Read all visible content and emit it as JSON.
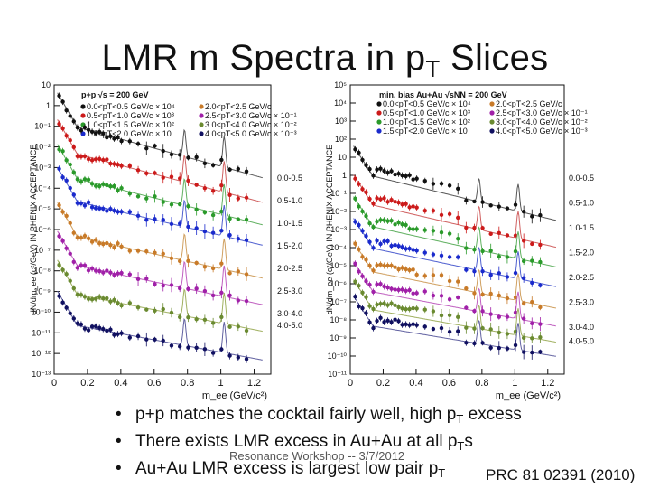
{
  "title": {
    "main": "LMR m Spectra in p",
    "sub": "T",
    "end": " Slices"
  },
  "bullets": [
    {
      "pre": "p+p matches the cocktail fairly well, high p",
      "sub": "T",
      "post": " excess"
    },
    {
      "pre": "There exists LMR excess in Au+Au at all p",
      "sub": "T",
      "post": "s"
    },
    {
      "pre": "Au+Au LMR excess is largest low pair p",
      "sub": "T",
      "post": ""
    }
  ],
  "footer": "Resonance Workshop -- 3/7/2012",
  "citation": "PRC 81 02391 (2010)",
  "colors": {
    "series": [
      "#111111",
      "#cc1a1a",
      "#2a9a2a",
      "#1a2acc",
      "#c87a28",
      "#a020a8",
      "#6a8a30",
      "#101060"
    ],
    "cocktail": [
      "#555555",
      "#d06060",
      "#60b060",
      "#5060d0",
      "#d0a060",
      "#c060c0",
      "#a0b060",
      "#6060a0"
    ]
  },
  "chart_data": [
    {
      "type": "line",
      "panel": "p+p",
      "header": "p+p √s = 200 GeV",
      "xlabel": "m_ee (GeV/c²)",
      "ylabel": "dN/dm_ee (c²/GeV) IN PHENIX ACCEPTANCE",
      "xlim": [
        0,
        1.3
      ],
      "ylim_log10": [
        -13,
        1
      ],
      "x_ticks": [
        "0",
        "0.2",
        "0.4",
        "0.6",
        "0.8",
        "1",
        "1.2"
      ],
      "y_ticks": [
        "10",
        "1",
        "10⁻¹",
        "10⁻²",
        "10⁻³",
        "10⁻⁴",
        "10⁻⁵",
        "10⁻⁶",
        "10⁻⁷",
        "10⁻⁸",
        "10⁻⁹",
        "10⁻¹⁰",
        "10⁻¹¹",
        "10⁻¹²",
        "10⁻¹³"
      ],
      "legend": [
        "0.0<pT<0.5 GeV/c × 10⁴",
        "0.5<pT<1.0 GeV/c × 10³",
        "1.0<pT<1.5 GeV/c × 10²",
        "1.5<pT<2.0 GeV/c × 10",
        "2.0<pT<2.5 GeV/c",
        "2.5<pT<3.0 GeV/c × 10⁻¹",
        "3.0<pT<4.0 GeV/c × 10⁻²",
        "4.0<pT<5.0 GeV/c × 10⁻³"
      ],
      "slice_labels": [
        "0.0-0.5",
        "0.5-1.0",
        "1.0-1.5",
        "1.5-2.0",
        "2.0-2.5",
        "2.5-3.0",
        "3.0-4.0",
        "4.0-5.0"
      ],
      "offsets_log10": [
        0,
        -1.3,
        -2.5,
        -3.6,
        -5.3,
        -6.7,
        -8.1,
        -9.6
      ]
    },
    {
      "type": "line",
      "panel": "Au+Au",
      "header": "min. bias Au+Au √sNN = 200 GeV",
      "xlabel": "m_ee (GeV/c²)",
      "ylabel": "dN/dm_ee (c²/GeV) IN PHENIX ACCEPTANCE",
      "xlim": [
        0,
        1.3
      ],
      "ylim_log10": [
        -11,
        5
      ],
      "x_ticks": [
        "0",
        "0.2",
        "0.4",
        "0.6",
        "0.8",
        "1",
        "1.2"
      ],
      "y_ticks": [
        "10⁵",
        "10⁴",
        "10³",
        "10²",
        "10",
        "1",
        "10⁻¹",
        "10⁻²",
        "10⁻³",
        "10⁻⁴",
        "10⁻⁵",
        "10⁻⁶",
        "10⁻⁷",
        "10⁻⁸",
        "10⁻⁹",
        "10⁻¹⁰",
        "10⁻¹¹"
      ],
      "legend": [
        "0.0<pT<0.5 GeV/c × 10⁴",
        "0.5<pT<1.0 GeV/c × 10³",
        "1.0<pT<1.5 GeV/c × 10²",
        "1.5<pT<2.0 GeV/c × 10",
        "2.0<pT<2.5 GeV/c",
        "2.5<pT<3.0 GeV/c × 10⁻¹",
        "3.0<pT<4.0 GeV/c × 10⁻²",
        "4.0<pT<5.0 GeV/c × 10⁻³"
      ],
      "slice_labels": [
        "0.0-0.5",
        "0.5-1.0",
        "1.0-1.5",
        "1.5-2.0",
        "2.0-2.5",
        "2.5-3.0",
        "3.0-4.0",
        "4.0-5.0"
      ],
      "offsets_log10": [
        1.0,
        -0.6,
        -1.8,
        -3.0,
        -4.3,
        -5.4,
        -6.4,
        -7.3
      ]
    }
  ]
}
